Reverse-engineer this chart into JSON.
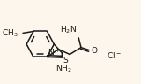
{
  "bg_color": "#fdf6ec",
  "line_color": "#1a1a1a",
  "text_color": "#1a1a1a",
  "lw": 1.1,
  "figsize": [
    1.6,
    0.95
  ],
  "dpi": 100
}
